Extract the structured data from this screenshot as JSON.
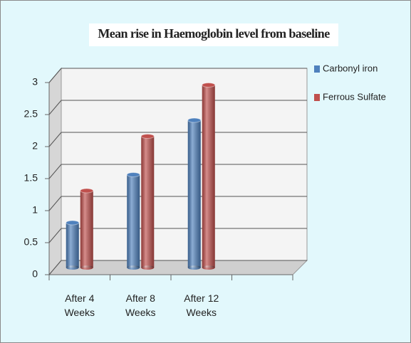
{
  "chart_data": {
    "type": "bar3d",
    "title": "Mean rise in Haemoglobin level from baseline",
    "categories": [
      "After 4 Weeks",
      "After 8 Weeks",
      "After 12 Weeks"
    ],
    "series": [
      {
        "name": "Carbonyl iron",
        "color": "#4f81bd",
        "values": [
          0.7,
          1.45,
          2.3
        ]
      },
      {
        "name": "Ferrous Sulfate",
        "color": "#c0504d",
        "values": [
          1.2,
          2.05,
          2.85
        ]
      }
    ],
    "ylim": [
      0,
      3
    ],
    "yticks": [
      0,
      0.5,
      1,
      1.5,
      2,
      2.5,
      3
    ],
    "grid": true,
    "legend": "right"
  }
}
